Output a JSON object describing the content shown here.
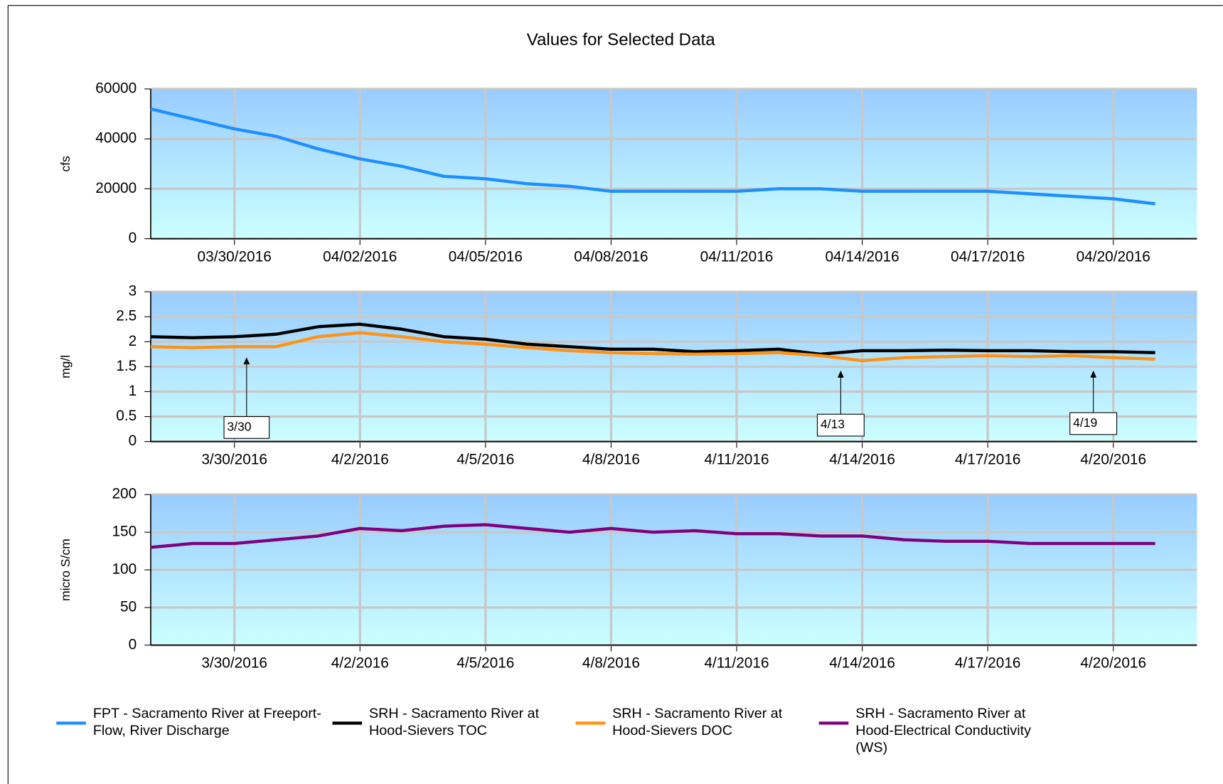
{
  "chart_data": [
    {
      "type": "line",
      "title": "Values for Selected Data",
      "y_label": "cfs",
      "x": [
        "2016-03-28",
        "2016-03-29",
        "2016-03-30",
        "2016-03-31",
        "2016-04-01",
        "2016-04-02",
        "2016-04-03",
        "2016-04-04",
        "2016-04-05",
        "2016-04-06",
        "2016-04-07",
        "2016-04-08",
        "2016-04-09",
        "2016-04-10",
        "2016-04-11",
        "2016-04-12",
        "2016-04-13",
        "2016-04-14",
        "2016-04-15",
        "2016-04-16",
        "2016-04-17",
        "2016-04-18",
        "2016-04-19",
        "2016-04-20",
        "2016-04-21"
      ],
      "series": [
        {
          "name": "FPT - Sacramento River at Freeport-Flow, River Discharge",
          "color": "#1e8fff",
          "values": [
            52000,
            48000,
            44000,
            41000,
            36000,
            32000,
            29000,
            25000,
            24000,
            22000,
            21000,
            19000,
            19000,
            19000,
            19000,
            20000,
            20000,
            19000,
            19000,
            19000,
            19000,
            18000,
            17000,
            16000,
            14000
          ]
        }
      ],
      "xlim": [
        "2016-03-28",
        "2016-04-22"
      ],
      "xticks": [
        {
          "value": "2016-03-30",
          "label": "03/30/2016"
        },
        {
          "value": "2016-04-02",
          "label": "04/02/2016"
        },
        {
          "value": "2016-04-05",
          "label": "04/05/2016"
        },
        {
          "value": "2016-04-08",
          "label": "04/08/2016"
        },
        {
          "value": "2016-04-11",
          "label": "04/11/2016"
        },
        {
          "value": "2016-04-14",
          "label": "04/14/2016"
        },
        {
          "value": "2016-04-17",
          "label": "04/17/2016"
        },
        {
          "value": "2016-04-20",
          "label": "04/20/2016"
        }
      ],
      "ylim": [
        0,
        60000
      ],
      "yticks": [
        0,
        20000,
        40000,
        60000
      ],
      "grid": true
    },
    {
      "type": "line",
      "y_label": "mg/l",
      "x": [
        "2016-03-28",
        "2016-03-29",
        "2016-03-30",
        "2016-03-31",
        "2016-04-01",
        "2016-04-02",
        "2016-04-03",
        "2016-04-04",
        "2016-04-05",
        "2016-04-06",
        "2016-04-07",
        "2016-04-08",
        "2016-04-09",
        "2016-04-10",
        "2016-04-11",
        "2016-04-12",
        "2016-04-13",
        "2016-04-14",
        "2016-04-15",
        "2016-04-16",
        "2016-04-17",
        "2016-04-18",
        "2016-04-19",
        "2016-04-20",
        "2016-04-21"
      ],
      "series": [
        {
          "name": "SRH - Sacramento River at Hood-Sievers TOC",
          "color": "#000000",
          "values": [
            2.1,
            2.08,
            2.1,
            2.15,
            2.3,
            2.35,
            2.25,
            2.1,
            2.05,
            1.95,
            1.9,
            1.85,
            1.85,
            1.8,
            1.82,
            1.85,
            1.75,
            1.82,
            1.82,
            1.83,
            1.82,
            1.82,
            1.8,
            1.8,
            1.78
          ]
        },
        {
          "name": "SRH - Sacramento River at Hood-Sievers DOC",
          "color": "#ff9214",
          "values": [
            1.9,
            1.88,
            1.9,
            1.9,
            2.1,
            2.18,
            2.1,
            2.0,
            1.95,
            1.88,
            1.82,
            1.78,
            1.76,
            1.75,
            1.76,
            1.78,
            1.72,
            1.62,
            1.68,
            1.7,
            1.72,
            1.7,
            1.72,
            1.68,
            1.65
          ]
        }
      ],
      "annotations": [
        "3/30",
        "4/13",
        "4/19"
      ],
      "xlim": [
        "2016-03-28",
        "2016-04-22"
      ],
      "xticks": [
        {
          "value": "2016-03-30",
          "label": "3/30/2016"
        },
        {
          "value": "2016-04-02",
          "label": "4/2/2016"
        },
        {
          "value": "2016-04-05",
          "label": "4/5/2016"
        },
        {
          "value": "2016-04-08",
          "label": "4/8/2016"
        },
        {
          "value": "2016-04-11",
          "label": "4/11/2016"
        },
        {
          "value": "2016-04-14",
          "label": "4/14/2016"
        },
        {
          "value": "2016-04-17",
          "label": "4/17/2016"
        },
        {
          "value": "2016-04-20",
          "label": "4/20/2016"
        }
      ],
      "ylim": [
        0,
        3
      ],
      "yticks": [
        0,
        0.5,
        1,
        1.5,
        2,
        2.5,
        3
      ],
      "grid": true
    },
    {
      "type": "line",
      "y_label": "micro S/cm",
      "x": [
        "2016-03-28",
        "2016-03-29",
        "2016-03-30",
        "2016-03-31",
        "2016-04-01",
        "2016-04-02",
        "2016-04-03",
        "2016-04-04",
        "2016-04-05",
        "2016-04-06",
        "2016-04-07",
        "2016-04-08",
        "2016-04-09",
        "2016-04-10",
        "2016-04-11",
        "2016-04-12",
        "2016-04-13",
        "2016-04-14",
        "2016-04-15",
        "2016-04-16",
        "2016-04-17",
        "2016-04-18",
        "2016-04-19",
        "2016-04-20",
        "2016-04-21"
      ],
      "series": [
        {
          "name": "SRH - Sacramento River at Hood-Electrical Conductivity (WS)",
          "color": "#800080",
          "values": [
            130,
            135,
            135,
            140,
            145,
            155,
            152,
            158,
            160,
            155,
            150,
            155,
            150,
            152,
            148,
            148,
            145,
            145,
            140,
            138,
            138,
            135,
            135,
            135,
            135
          ]
        }
      ],
      "xlim": [
        "2016-03-28",
        "2016-04-22"
      ],
      "xticks": [
        {
          "value": "2016-03-30",
          "label": "3/30/2016"
        },
        {
          "value": "2016-04-02",
          "label": "4/2/2016"
        },
        {
          "value": "2016-04-05",
          "label": "4/5/2016"
        },
        {
          "value": "2016-04-08",
          "label": "4/8/2016"
        },
        {
          "value": "2016-04-11",
          "label": "4/11/2016"
        },
        {
          "value": "2016-04-14",
          "label": "4/14/2016"
        },
        {
          "value": "2016-04-17",
          "label": "4/17/2016"
        },
        {
          "value": "2016-04-20",
          "label": "4/20/2016"
        }
      ],
      "ylim": [
        0,
        200
      ],
      "yticks": [
        0,
        50,
        100,
        150,
        200
      ],
      "grid": true
    }
  ]
}
